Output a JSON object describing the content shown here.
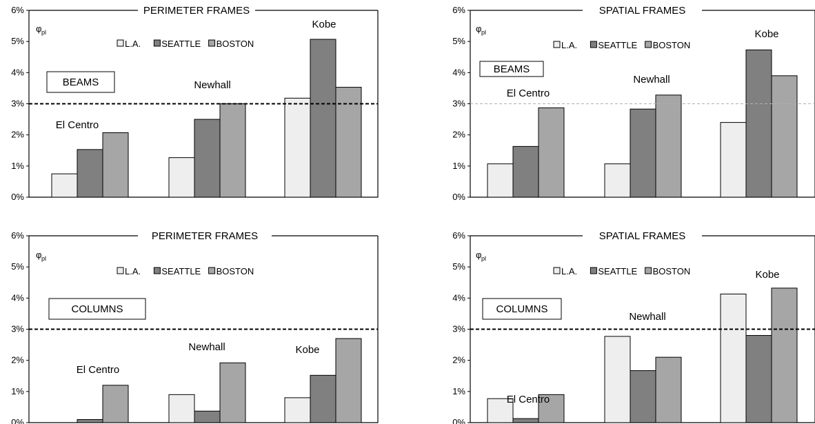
{
  "chart_data": [
    {
      "type": "bar",
      "title": "PERIMETER FRAMES",
      "ylabel_symbol": "φ",
      "ylabel_subscript": "pl",
      "box_label": "BEAMS",
      "yticks": [
        "0%",
        "1%",
        "2%",
        "3%",
        "4%",
        "5%",
        "6%"
      ],
      "ylim": [
        0,
        6
      ],
      "reference_line": 3,
      "reference_style": "bold-dashed",
      "legend": [
        "L.A.",
        "SEATTLE",
        "BOSTON"
      ],
      "categories": [
        "El Centro",
        "Newhall",
        "Kobe"
      ],
      "series": [
        {
          "name": "L.A.",
          "color": "#eeeeee",
          "values": [
            0.75,
            1.27,
            3.18
          ]
        },
        {
          "name": "SEATTLE",
          "color": "#808080",
          "values": [
            1.53,
            2.5,
            5.07
          ]
        },
        {
          "name": "BOSTON",
          "color": "#a6a6a6",
          "values": [
            2.07,
            3.0,
            3.53
          ]
        }
      ],
      "grid": false
    },
    {
      "type": "bar",
      "title": "SPATIAL FRAMES",
      "ylabel_symbol": "φ",
      "ylabel_subscript": "pl",
      "box_label": "BEAMS",
      "yticks": [
        "0%",
        "1%",
        "2%",
        "3%",
        "4%",
        "5%",
        "6%"
      ],
      "ylim": [
        0,
        6
      ],
      "reference_line": 3,
      "reference_style": "light-dashed",
      "legend": [
        "L.A.",
        "SEATTLE",
        "BOSTON"
      ],
      "categories": [
        "El Centro",
        "Newhall",
        "Kobe"
      ],
      "series": [
        {
          "name": "L.A.",
          "color": "#eeeeee",
          "values": [
            1.07,
            1.07,
            2.4
          ]
        },
        {
          "name": "SEATTLE",
          "color": "#808080",
          "values": [
            1.63,
            2.83,
            4.73
          ]
        },
        {
          "name": "BOSTON",
          "color": "#a6a6a6",
          "values": [
            2.87,
            3.28,
            3.9
          ]
        }
      ],
      "grid": false
    },
    {
      "type": "bar",
      "title": "PERIMETER FRAMES",
      "ylabel_symbol": "φ",
      "ylabel_subscript": "pl",
      "box_label": "COLUMNS",
      "yticks": [
        "0%",
        "1%",
        "2%",
        "3%",
        "4%",
        "5%",
        "6%"
      ],
      "ylim": [
        0,
        6
      ],
      "reference_line": 3,
      "reference_style": "bold-dashed",
      "legend": [
        "L.A.",
        "SEATTLE",
        "BOSTON"
      ],
      "categories": [
        "El Centro",
        "Newhall",
        "Kobe"
      ],
      "series": [
        {
          "name": "L.A.",
          "color": "#eeeeee",
          "values": [
            0.0,
            0.9,
            0.8
          ]
        },
        {
          "name": "SEATTLE",
          "color": "#808080",
          "values": [
            0.1,
            0.37,
            1.52
          ]
        },
        {
          "name": "BOSTON",
          "color": "#a6a6a6",
          "values": [
            1.2,
            1.92,
            2.7
          ]
        }
      ],
      "grid": false
    },
    {
      "type": "bar",
      "title": "SPATIAL FRAMES",
      "ylabel_symbol": "φ",
      "ylabel_subscript": "pl",
      "box_label": "COLUMNS",
      "yticks": [
        "0%",
        "1%",
        "2%",
        "3%",
        "4%",
        "5%",
        "6%"
      ],
      "ylim": [
        0,
        6
      ],
      "reference_line": 3,
      "reference_style": "bold-dashed",
      "legend": [
        "L.A.",
        "SEATTLE",
        "BOSTON"
      ],
      "categories": [
        "El Centro",
        "Newhall",
        "Kobe"
      ],
      "series": [
        {
          "name": "L.A.",
          "color": "#eeeeee",
          "values": [
            0.77,
            2.77,
            4.13
          ]
        },
        {
          "name": "SEATTLE",
          "color": "#808080",
          "values": [
            0.13,
            1.67,
            2.8
          ]
        },
        {
          "name": "BOSTON",
          "color": "#a6a6a6",
          "values": [
            0.9,
            2.1,
            4.32
          ]
        }
      ],
      "grid": false
    }
  ]
}
